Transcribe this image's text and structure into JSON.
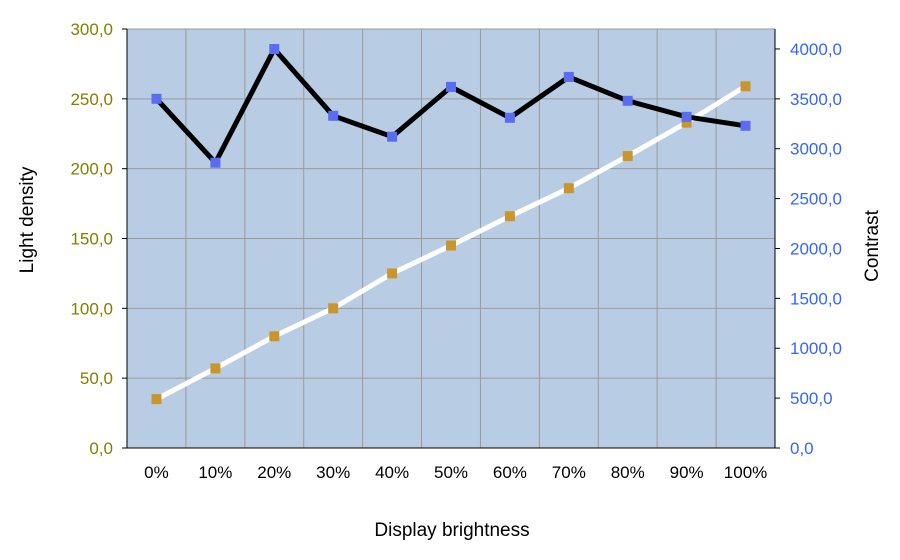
{
  "chart_data": {
    "type": "line",
    "xlabel": "Display brightness",
    "categories": [
      "0%",
      "10%",
      "20%",
      "30%",
      "40%",
      "50%",
      "60%",
      "70%",
      "80%",
      "90%",
      "100%"
    ],
    "y_left": {
      "label": "Light density",
      "range": [
        0,
        300
      ],
      "ticks": [
        "0,0",
        "50,0",
        "100,0",
        "150,0",
        "200,0",
        "250,0",
        "300,0"
      ],
      "tick_color": "#808000"
    },
    "y_right": {
      "label": "Contrast",
      "range": [
        0,
        4200
      ],
      "ticks": [
        "0,0",
        "500,0",
        "1000,0",
        "1500,0",
        "2000,0",
        "2500,0",
        "3000,0",
        "3500,0",
        "4000,0"
      ],
      "tick_values": [
        0,
        500,
        1000,
        1500,
        2000,
        2500,
        3000,
        3500,
        4000
      ],
      "tick_color": "#3366ff"
    },
    "series": [
      {
        "axis": "left",
        "line_color": "#ffffff",
        "marker_color": "#c8962c",
        "values": [
          35,
          57,
          80,
          100,
          125,
          145,
          166,
          186,
          209,
          233,
          259
        ]
      },
      {
        "axis": "right",
        "line_color": "#000000",
        "marker_color": "#5a6cf0",
        "values": [
          3500,
          2860,
          4000,
          3330,
          3120,
          3620,
          3310,
          3720,
          3480,
          3320,
          3230
        ]
      }
    ],
    "plot_background": "#b8cce4",
    "grid": true,
    "grid_color": "#9a9a9a"
  }
}
